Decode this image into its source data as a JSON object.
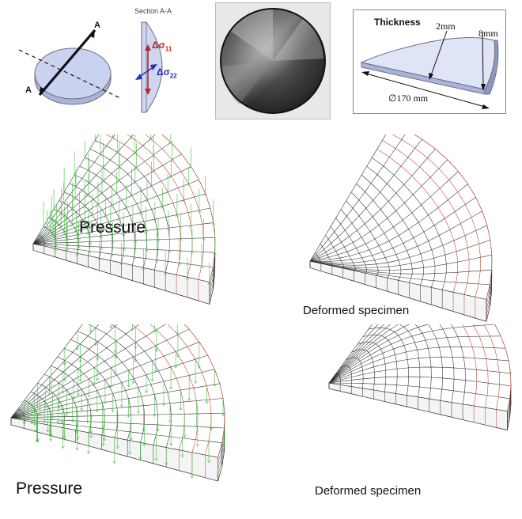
{
  "schematic": {
    "section_marker": "A",
    "section_marker_2": "A",
    "section_title": "Section A-A",
    "stress_11": "Δσ",
    "stress_11_sub": "11",
    "stress_22": "Δσ",
    "stress_22_sub": "22"
  },
  "thickness_panel": {
    "title": "Thickness",
    "inner_thickness": "2mm",
    "outer_thickness": "8mm",
    "diameter": "∅170 mm"
  },
  "fem_panels": {
    "top_left_label": "Pressure",
    "top_right_label": "Deformed specimen",
    "bottom_left_label": "Pressure",
    "bottom_right_label": "Deformed specimen"
  },
  "colors": {
    "mesh": "#2a2a2a",
    "edge_mesh": "#c0392b",
    "pressure_arrows": "#3fbf3f",
    "stress_11": "#c0202a",
    "stress_22": "#2430b8",
    "disc_fill": "#cfd6f0"
  }
}
